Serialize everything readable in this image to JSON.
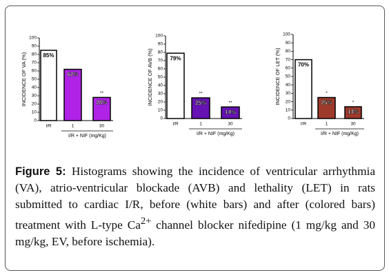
{
  "chart_data": [
    {
      "type": "bar",
      "ylabel": "INCIDENCE OF VA (%)",
      "categories": [
        "I/R",
        "1",
        "30"
      ],
      "values": [
        85,
        62,
        28
      ],
      "value_labels": [
        "85%",
        "62%",
        "28%"
      ],
      "colors": [
        "#ffffff",
        "#b023e6",
        "#b023e6"
      ],
      "annotations": [
        null,
        null,
        "**"
      ],
      "group_label": "I/R + NIF (mg/Kg)",
      "ylim": [
        0,
        100
      ],
      "yticks": [
        0,
        10,
        20,
        30,
        40,
        50,
        60,
        70,
        80,
        90,
        100
      ]
    },
    {
      "type": "bar",
      "ylabel": "INCIDENCE OF AVB (%)",
      "categories": [
        "I/R",
        "1",
        "30"
      ],
      "values": [
        79,
        25,
        14
      ],
      "value_labels": [
        "79%",
        "25%",
        "14%"
      ],
      "colors": [
        "#ffffff",
        "#6612b4",
        "#6612b4"
      ],
      "annotations": [
        null,
        "**",
        "**"
      ],
      "group_label": "I/R + NIF (mg/Kg)",
      "ylim": [
        0,
        100
      ],
      "yticks": [
        0,
        10,
        20,
        30,
        40,
        50,
        60,
        70,
        80,
        90,
        100
      ]
    },
    {
      "type": "bar",
      "ylabel": "INCIDENCE OF LET (%)",
      "categories": [
        "I/R",
        "1",
        "30"
      ],
      "values": [
        70,
        25,
        14
      ],
      "value_labels": [
        "70%",
        "25%",
        "14%"
      ],
      "colors": [
        "#ffffff",
        "#9e3a2c",
        "#9e3a2c"
      ],
      "annotations": [
        null,
        "*",
        "*"
      ],
      "group_label": "I/R + NIF (mg/Kg)",
      "ylim": [
        0,
        100
      ],
      "yticks": [
        0,
        10,
        20,
        30,
        40,
        50,
        60,
        70,
        80,
        90,
        100
      ]
    }
  ],
  "caption": {
    "label": "Figure 5:",
    "text_before": " Histograms showing the incidence of ventricular arrhythmia (VA), atrio-ventricular blockade (AVB) and lethality (LET) in rats submitted to cardiac I/R, before (white bars) and after (colored bars) treatment with L-type Ca",
    "superscript": "2+",
    "text_after": " channel blocker nifedipine (1 mg/kg and 30 mg/kg, EV, before ischemia)."
  }
}
